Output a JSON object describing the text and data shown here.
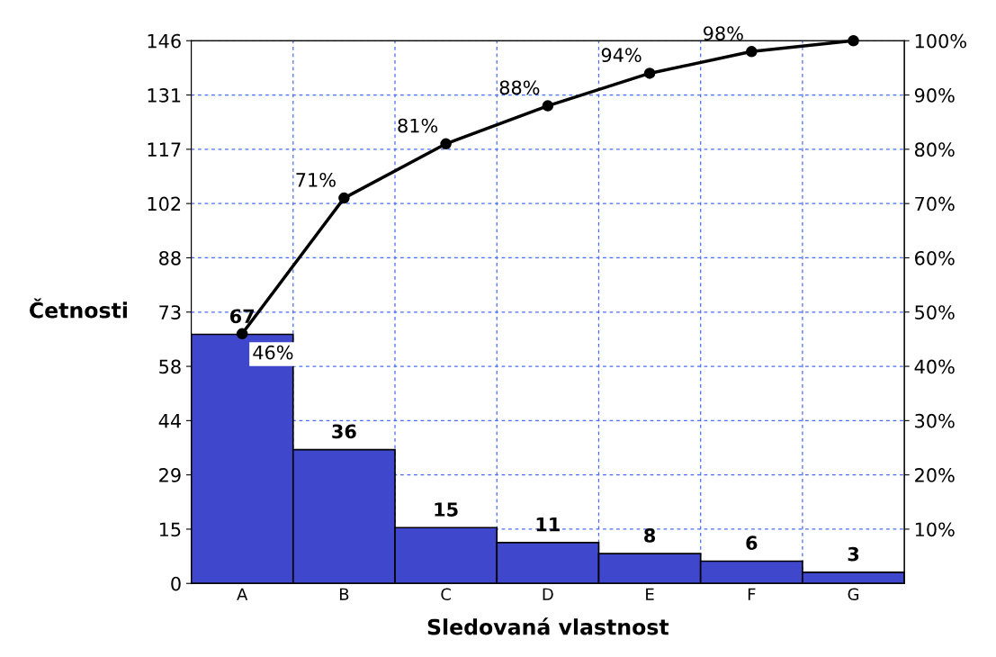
{
  "chart_data": {
    "type": "bar",
    "xlabel": "Sledovaná vlastnost",
    "ylabel": "Četnosti",
    "categories": [
      "A",
      "B",
      "C",
      "D",
      "E",
      "F",
      "G"
    ],
    "ylim": [
      0,
      146
    ],
    "yticks": [
      0,
      {
        "value": 14.6,
        "label": "15"
      },
      {
        "value": 29.2,
        "label": "29"
      },
      {
        "value": 43.8,
        "label": "44"
      },
      {
        "value": 58.4,
        "label": "58"
      },
      73,
      {
        "value": 87.6,
        "label": "88"
      },
      {
        "value": 102.2,
        "label": "102"
      },
      {
        "value": 116.8,
        "label": "117"
      },
      {
        "value": 131.4,
        "label": "131"
      },
      146
    ],
    "y2lim": [
      0,
      100
    ],
    "y2ticks": [
      {
        "value": 10,
        "label": "10%"
      },
      {
        "value": 20,
        "label": "20%"
      },
      {
        "value": 30,
        "label": "30%"
      },
      {
        "value": 40,
        "label": "40%"
      },
      {
        "value": 50,
        "label": "50%"
      },
      {
        "value": 60,
        "label": "60%"
      },
      {
        "value": 70,
        "label": "70%"
      },
      {
        "value": 80,
        "label": "80%"
      },
      {
        "value": 90,
        "label": "90%"
      },
      {
        "value": 100,
        "label": "100%"
      }
    ],
    "grid": true,
    "data_labels": true,
    "series": [
      {
        "color": "#3f48cc",
        "values": [
          67,
          36,
          15,
          11,
          8,
          6,
          3
        ]
      },
      {
        "type": "line",
        "axis": "y2",
        "color": "#000000",
        "marker": "circle",
        "values": [
          46,
          71,
          81,
          88,
          94,
          98,
          100
        ],
        "value_labels": [
          "46%",
          "71%",
          "81%",
          "88%",
          "94%",
          "98%",
          null
        ]
      }
    ]
  }
}
